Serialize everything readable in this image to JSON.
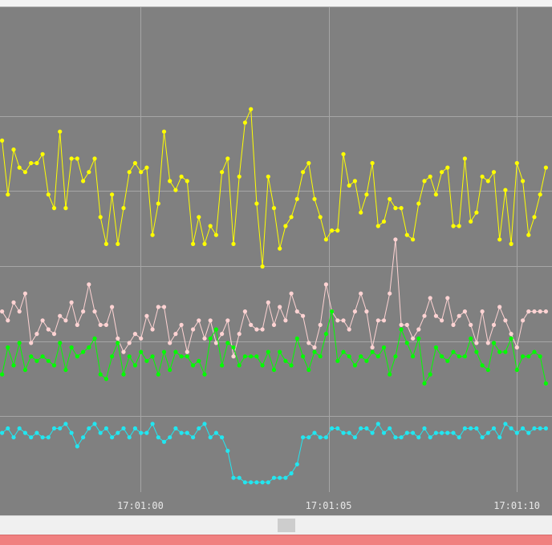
{
  "chart_data": {
    "type": "line",
    "x_tick_labels": [
      "17:01:00",
      "17:01:05",
      "17:01:10"
    ],
    "x_range_seconds": [
      -3.75,
      10.85
    ],
    "y_range": [
      0,
      100
    ],
    "grid": true,
    "background": "#808080",
    "series": [
      {
        "color": "#ffff00",
        "values": [
          78,
          66,
          76,
          72,
          71,
          73,
          73,
          75,
          66,
          63,
          80,
          63,
          74,
          74,
          69,
          71,
          74,
          61,
          55,
          66,
          55,
          63,
          71,
          73,
          71,
          72,
          57,
          64,
          80,
          69,
          67,
          70,
          69,
          55,
          61,
          55,
          59,
          57,
          71,
          74,
          55,
          70,
          82,
          85,
          64,
          50,
          70,
          63,
          54,
          59,
          61,
          65,
          71,
          73,
          65,
          61,
          56,
          58,
          58,
          75,
          68,
          69,
          62,
          66,
          73,
          59,
          60,
          65,
          63,
          63,
          57,
          56,
          64,
          69,
          70,
          66,
          71,
          72,
          59,
          59,
          74,
          60,
          62,
          70,
          69,
          71,
          56,
          67,
          55,
          73,
          69,
          57,
          61,
          66,
          72
        ]
      },
      {
        "color": "#ffd3d3",
        "values": [
          40,
          38,
          42,
          40,
          44,
          33,
          35,
          38,
          36,
          35,
          39,
          38,
          42,
          37,
          40,
          46,
          40,
          37,
          37,
          41,
          34,
          31,
          33,
          35,
          34,
          39,
          36,
          41,
          41,
          33,
          35,
          37,
          31,
          36,
          38,
          34,
          38,
          33,
          35,
          38,
          30,
          35,
          40,
          37,
          36,
          36,
          42,
          37,
          41,
          38,
          44,
          40,
          39,
          33,
          32,
          37,
          46,
          40,
          38,
          38,
          36,
          40,
          44,
          40,
          32,
          38,
          38,
          44,
          56,
          37,
          37,
          34,
          36,
          39,
          43,
          39,
          38,
          43,
          37,
          39,
          40,
          37,
          33,
          40,
          33,
          37,
          41,
          38,
          35,
          32,
          38,
          40,
          40,
          40,
          40
        ]
      },
      {
        "color": "#00ff00",
        "values": [
          26,
          32,
          28,
          33,
          27,
          30,
          29,
          30,
          29,
          28,
          33,
          27,
          32,
          30,
          31,
          32,
          34,
          26,
          25,
          30,
          33,
          26,
          30,
          28,
          31,
          29,
          30,
          26,
          31,
          27,
          31,
          30,
          30,
          28,
          29,
          26,
          34,
          36,
          28,
          33,
          32,
          28,
          30,
          30,
          30,
          28,
          31,
          27,
          31,
          29,
          28,
          34,
          30,
          27,
          31,
          30,
          35,
          40,
          29,
          31,
          30,
          28,
          30,
          29,
          31,
          30,
          32,
          26,
          30,
          36,
          33,
          30,
          34,
          24,
          26,
          32,
          30,
          29,
          31,
          30,
          30,
          34,
          31,
          28,
          27,
          33,
          31,
          31,
          34,
          27,
          30,
          30,
          31,
          30,
          24
        ]
      },
      {
        "color": "#22e6f0",
        "values": [
          13,
          14,
          12,
          14,
          13,
          12,
          13,
          12,
          12,
          14,
          14,
          15,
          13,
          10,
          12,
          14,
          15,
          13,
          14,
          12,
          13,
          14,
          12,
          14,
          13,
          13,
          15,
          12,
          11,
          12,
          14,
          13,
          13,
          12,
          14,
          15,
          12,
          13,
          12,
          9,
          3,
          3,
          2,
          2,
          2,
          2,
          2,
          3,
          3,
          3,
          4,
          6,
          12,
          12,
          13,
          12,
          12,
          14,
          14,
          13,
          13,
          12,
          14,
          14,
          13,
          15,
          13,
          14,
          12,
          12,
          13,
          13,
          12,
          14,
          12,
          13,
          13,
          13,
          13,
          12,
          14,
          14,
          14,
          12,
          13,
          14,
          12,
          15,
          14,
          13,
          14,
          13,
          14,
          14,
          14
        ]
      }
    ]
  }
}
